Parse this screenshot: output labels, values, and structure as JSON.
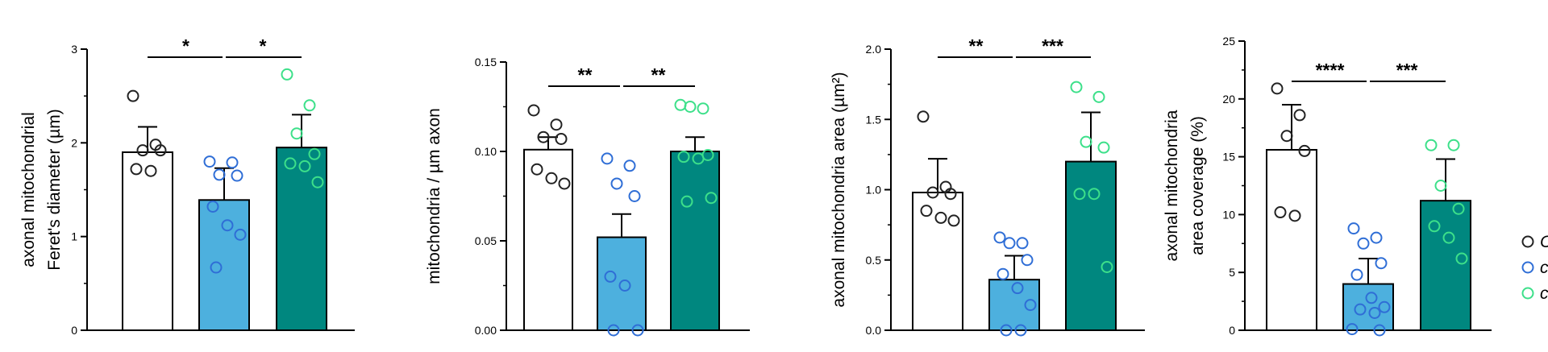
{
  "chart_data": [
    {
      "type": "bar",
      "ylabel": [
        "axonal mitochondrial",
        "Feret's diameter (µm)"
      ],
      "ylim": [
        0,
        3
      ],
      "yticks": [
        0,
        1,
        2,
        3
      ],
      "yticklabels": [
        "0",
        "1",
        "2",
        "3"
      ],
      "bars": [
        {
          "value": 1.9,
          "error": 0.27,
          "points": [
            2.5,
            1.98,
            1.92,
            1.92,
            1.72,
            1.7
          ],
          "color": "#ffffff",
          "point_color": "#222222"
        },
        {
          "value": 1.39,
          "error": 0.34,
          "points": [
            1.8,
            1.79,
            1.66,
            1.65,
            1.32,
            1.12,
            1.02,
            0.67
          ],
          "color": "#4db0de",
          "point_color": "#2f6ed6"
        },
        {
          "value": 1.95,
          "error": 0.35,
          "points": [
            2.73,
            2.4,
            2.1,
            1.88,
            1.78,
            1.75,
            1.58
          ],
          "color": "#00877f",
          "point_color": "#3de08a"
        }
      ],
      "comparisons": [
        {
          "from": 0,
          "to": 1,
          "label": "*"
        },
        {
          "from": 1,
          "to": 2,
          "label": "*"
        }
      ]
    },
    {
      "type": "bar",
      "ylabel": [
        "mitochondria / µm axon"
      ],
      "ylim": [
        0,
        0.15
      ],
      "yticks": [
        0,
        0.05,
        0.1,
        0.15
      ],
      "yticklabels": [
        "0.00",
        "0.05",
        "0.10",
        "0.15"
      ],
      "bars": [
        {
          "value": 0.101,
          "error": 0.007,
          "points": [
            0.123,
            0.115,
            0.108,
            0.107,
            0.09,
            0.085,
            0.082
          ],
          "color": "#ffffff",
          "point_color": "#222222"
        },
        {
          "value": 0.052,
          "error": 0.013,
          "points": [
            0.096,
            0.092,
            0.082,
            0.075,
            0.03,
            0.025,
            0.0,
            0.0
          ],
          "color": "#4db0de",
          "point_color": "#2f6ed6"
        },
        {
          "value": 0.1,
          "error": 0.008,
          "points": [
            0.126,
            0.124,
            0.125,
            0.098,
            0.097,
            0.096,
            0.074,
            0.072
          ],
          "color": "#00877f",
          "point_color": "#3de08a"
        }
      ],
      "comparisons": [
        {
          "from": 0,
          "to": 1,
          "label": "**"
        },
        {
          "from": 1,
          "to": 2,
          "label": "**"
        }
      ]
    },
    {
      "type": "bar",
      "ylabel": [
        "axonal mitochondria area (µm²)"
      ],
      "ylim": [
        0,
        2
      ],
      "yticks": [
        0,
        0.5,
        1,
        1.5,
        2
      ],
      "yticklabels": [
        "0.0",
        "0.5",
        "1.0",
        "1.5",
        "2.0"
      ],
      "bars": [
        {
          "value": 0.98,
          "error": 0.24,
          "points": [
            1.52,
            1.02,
            0.98,
            0.97,
            0.85,
            0.8,
            0.78
          ],
          "color": "#ffffff",
          "point_color": "#222222"
        },
        {
          "value": 0.36,
          "error": 0.17,
          "points": [
            0.66,
            0.62,
            0.62,
            0.5,
            0.4,
            0.3,
            0.18,
            0.0,
            0.0
          ],
          "color": "#4db0de",
          "point_color": "#2f6ed6"
        },
        {
          "value": 1.2,
          "error": 0.35,
          "points": [
            1.73,
            1.66,
            1.34,
            1.3,
            0.97,
            0.97,
            0.45
          ],
          "color": "#00877f",
          "point_color": "#3de08a"
        }
      ],
      "comparisons": [
        {
          "from": 0,
          "to": 1,
          "label": "**"
        },
        {
          "from": 1,
          "to": 2,
          "label": "***"
        }
      ]
    },
    {
      "type": "bar",
      "ylabel": [
        "axonal mitochondria",
        "area coverage  (%)"
      ],
      "ylim": [
        0,
        25
      ],
      "yticks": [
        0,
        5,
        10,
        15,
        20,
        25
      ],
      "yticklabels": [
        "0",
        "5",
        "10",
        "15",
        "20",
        "25"
      ],
      "bars": [
        {
          "value": 15.6,
          "error": 3.9,
          "points": [
            20.9,
            18.6,
            16.8,
            15.5,
            10.2,
            9.9
          ],
          "color": "#ffffff",
          "point_color": "#222222"
        },
        {
          "value": 4.0,
          "error": 2.2,
          "points": [
            8.8,
            8.0,
            7.5,
            5.8,
            4.8,
            2.8,
            2.0,
            1.8,
            1.5,
            0.1,
            0.0
          ],
          "color": "#4db0de",
          "point_color": "#2f6ed6"
        },
        {
          "value": 11.2,
          "error": 3.6,
          "points": [
            16.0,
            16.0,
            12.5,
            10.5,
            9.0,
            8.0,
            6.2
          ],
          "color": "#00877f",
          "point_color": "#3de08a"
        }
      ],
      "comparisons": [
        {
          "from": 0,
          "to": 1,
          "label": "****"
        },
        {
          "from": 1,
          "to": 2,
          "label": "***"
        }
      ]
    }
  ],
  "legend": {
    "position": "right",
    "entries": [
      {
        "label": "C",
        "color": "#222222"
      },
      {
        "label": "c",
        "color": "#2f6ed6"
      },
      {
        "label": "c",
        "color": "#3de08a"
      }
    ]
  }
}
